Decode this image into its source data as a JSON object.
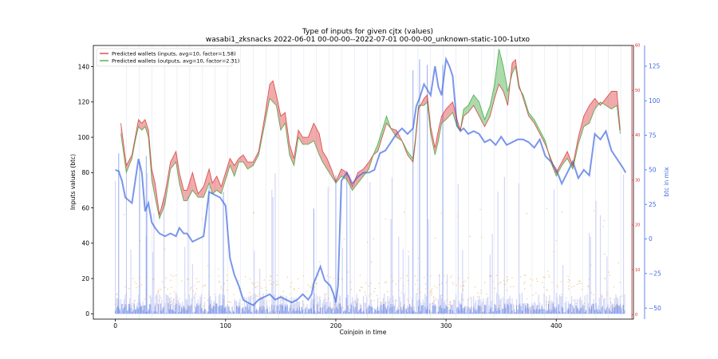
{
  "chart_data": {
    "type": "line",
    "title": "Type of inputs for given cjtx (values)",
    "subtitle": "wasabi1_zksnacks 2022-06-01 00-00-00--2022-07-01 00-00-00_unknown-static-100-1utxo",
    "xlabel": "Coinjoin in time",
    "ylabel": "Inputs values (btc)",
    "y2label": "btc in mix",
    "xlim": [
      -20,
      470
    ],
    "ylim": [
      -3,
      152
    ],
    "y2lim": [
      -58,
      140
    ],
    "yticks": [
      0,
      20,
      40,
      60,
      80,
      100,
      120,
      140
    ],
    "xticks": [
      0,
      100,
      200,
      300,
      400
    ],
    "y2ticks": [
      -50,
      -25,
      0,
      25,
      50,
      75,
      100,
      125
    ],
    "redticks": [
      0,
      10,
      20,
      30,
      40,
      50,
      60
    ],
    "redlim": [
      -1,
      60
    ],
    "colors": {
      "inputs": "#d62728",
      "outputs": "#2ca02c",
      "mix": "#4169e1",
      "bars": "#c8cdf5",
      "dots": "#f0b050"
    },
    "legend_position": "top-left",
    "legend": [
      "Predicted wallets (inputs, avg=10, factor=1.58)",
      "Predicted wallets (outputs, avg=10, factor=2.31)"
    ],
    "series": [
      {
        "name": "Predicted wallets (inputs, avg=10, factor=1.58)",
        "x": [
          5,
          10,
          15,
          18,
          21,
          24,
          27,
          30,
          33,
          36,
          40,
          45,
          50,
          55,
          58,
          62,
          65,
          70,
          75,
          80,
          85,
          88,
          92,
          96,
          100,
          104,
          108,
          112,
          116,
          120,
          125,
          130,
          135,
          140,
          143,
          146,
          150,
          154,
          158,
          162,
          166,
          170,
          175,
          180,
          185,
          188,
          192,
          196,
          200,
          205,
          210,
          215,
          220,
          225,
          230,
          234,
          238,
          242,
          246,
          250,
          255,
          260,
          265,
          270,
          272,
          275,
          280,
          283,
          286,
          290,
          293,
          296,
          300,
          303,
          306,
          310,
          313,
          316,
          320,
          325,
          330,
          335,
          340,
          344,
          348,
          352,
          356,
          360,
          363,
          366,
          370,
          375,
          380,
          385,
          390,
          395,
          400,
          405,
          410,
          415,
          420,
          425,
          430,
          435,
          440,
          445,
          450,
          455,
          458
        ],
        "y": [
          108,
          84,
          90,
          100,
          110,
          108,
          110,
          104,
          82,
          74,
          56,
          68,
          86,
          92,
          80,
          70,
          70,
          80,
          68,
          72,
          82,
          74,
          78,
          72,
          80,
          88,
          84,
          88,
          90,
          86,
          86,
          92,
          110,
          130,
          132,
          124,
          112,
          114,
          96,
          88,
          104,
          100,
          100,
          108,
          102,
          92,
          88,
          82,
          75,
          82,
          80,
          72,
          80,
          82,
          86,
          90,
          92,
          100,
          108,
          105,
          104,
          98,
          90,
          86,
          96,
          116,
          122,
          124,
          106,
          94,
          104,
          112,
          116,
          118,
          120,
          110,
          104,
          112,
          114,
          118,
          112,
          106,
          112,
          122,
          130,
          126,
          118,
          142,
          144,
          130,
          122,
          112,
          108,
          102,
          96,
          88,
          80,
          86,
          92,
          84,
          100,
          112,
          118,
          122,
          118,
          122,
          126,
          126,
          104
        ]
      },
      {
        "name": "Predicted wallets (outputs, avg=10, factor=2.31)",
        "x": [
          5,
          10,
          15,
          18,
          21,
          24,
          27,
          30,
          33,
          36,
          40,
          45,
          50,
          55,
          58,
          62,
          65,
          70,
          75,
          80,
          85,
          88,
          92,
          96,
          100,
          104,
          108,
          112,
          116,
          120,
          125,
          130,
          135,
          140,
          143,
          146,
          150,
          154,
          158,
          162,
          166,
          170,
          175,
          180,
          185,
          188,
          192,
          196,
          200,
          205,
          210,
          215,
          220,
          225,
          230,
          234,
          238,
          242,
          246,
          250,
          255,
          260,
          265,
          270,
          272,
          275,
          280,
          283,
          286,
          290,
          293,
          296,
          300,
          303,
          306,
          310,
          313,
          316,
          320,
          325,
          330,
          335,
          340,
          344,
          348,
          352,
          356,
          360,
          363,
          366,
          370,
          375,
          380,
          385,
          390,
          395,
          400,
          405,
          410,
          415,
          420,
          425,
          430,
          435,
          440,
          445,
          450,
          455,
          458
        ],
        "y": [
          102,
          80,
          88,
          98,
          106,
          104,
          106,
          100,
          76,
          66,
          54,
          62,
          82,
          86,
          74,
          64,
          64,
          70,
          66,
          66,
          74,
          68,
          70,
          68,
          76,
          84,
          78,
          86,
          86,
          82,
          84,
          90,
          106,
          122,
          120,
          118,
          104,
          108,
          90,
          84,
          100,
          96,
          96,
          98,
          90,
          86,
          82,
          78,
          74,
          78,
          76,
          70,
          74,
          78,
          82,
          90,
          96,
          104,
          112,
          105,
          100,
          98,
          92,
          88,
          98,
          118,
          118,
          120,
          102,
          90,
          98,
          108,
          110,
          112,
          114,
          106,
          104,
          116,
          118,
          124,
          120,
          110,
          118,
          130,
          150,
          140,
          126,
          136,
          140,
          128,
          124,
          114,
          110,
          104,
          98,
          86,
          78,
          84,
          88,
          82,
          96,
          106,
          108,
          116,
          120,
          118,
          116,
          118,
          102
        ]
      },
      {
        "name": "btc in mix",
        "x": [
          0,
          3,
          6,
          9,
          12,
          15,
          18,
          21,
          24,
          27,
          30,
          33,
          36,
          40,
          45,
          50,
          55,
          58,
          62,
          65,
          70,
          75,
          80,
          85,
          90,
          95,
          100,
          102,
          104,
          108,
          112,
          116,
          120,
          125,
          130,
          135,
          140,
          145,
          150,
          155,
          160,
          165,
          170,
          175,
          178,
          180,
          183,
          186,
          190,
          195,
          198,
          200,
          202,
          205,
          210,
          215,
          220,
          225,
          230,
          235,
          240,
          245,
          250,
          255,
          260,
          265,
          270,
          273,
          276,
          280,
          283,
          286,
          290,
          293,
          296,
          300,
          303,
          306,
          310,
          313,
          316,
          320,
          325,
          330,
          335,
          340,
          345,
          350,
          355,
          360,
          365,
          370,
          375,
          380,
          385,
          390,
          395,
          400,
          405,
          410,
          415,
          420,
          425,
          430,
          435,
          440,
          445,
          450,
          455,
          460,
          463
        ],
        "y": [
          50,
          49,
          42,
          30,
          28,
          26,
          42,
          58,
          48,
          20,
          26,
          12,
          8,
          4,
          2,
          4,
          2,
          8,
          4,
          4,
          -2,
          0,
          2,
          34,
          32,
          30,
          24,
          4,
          -14,
          -26,
          -34,
          -44,
          -46,
          -48,
          -44,
          -42,
          -40,
          -44,
          -42,
          -44,
          -46,
          -44,
          -40,
          -44,
          -40,
          -32,
          -26,
          -20,
          -30,
          -34,
          -40,
          -46,
          -34,
          42,
          48,
          40,
          45,
          48,
          48,
          50,
          62,
          64,
          70,
          76,
          80,
          76,
          80,
          96,
          102,
          112,
          108,
          104,
          125,
          110,
          104,
          130,
          125,
          118,
          82,
          78,
          80,
          76,
          78,
          76,
          70,
          72,
          68,
          74,
          68,
          70,
          72,
          72,
          70,
          66,
          72,
          60,
          56,
          50,
          40,
          48,
          56,
          44,
          50,
          46,
          76,
          72,
          78,
          64,
          58,
          52,
          48
        ]
      }
    ],
    "mix_spikes": [
      [
        3,
        62
      ],
      [
        10,
        48
      ],
      [
        22,
        56
      ],
      [
        28,
        60
      ],
      [
        85,
        38
      ],
      [
        98,
        34
      ],
      [
        180,
        22
      ],
      [
        200,
        46
      ],
      [
        210,
        48
      ],
      [
        270,
        122
      ],
      [
        276,
        130
      ],
      [
        283,
        126
      ],
      [
        297,
        126
      ]
    ]
  }
}
